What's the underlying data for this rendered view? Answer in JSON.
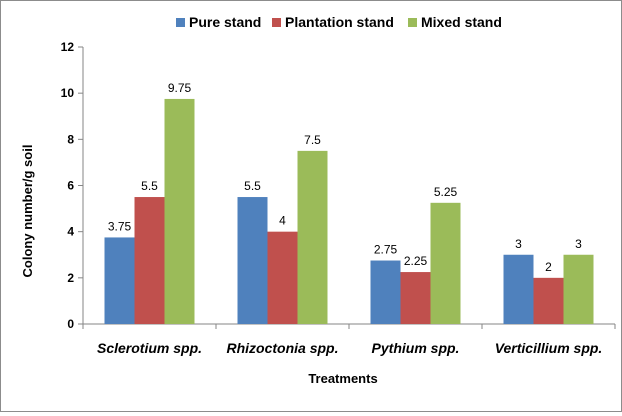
{
  "chart_data": {
    "type": "bar",
    "categories": [
      "Sclerotium spp.",
      "Rhizoctonia spp.",
      "Pythium spp.",
      "Verticillium spp."
    ],
    "series": [
      {
        "name": "Pure stand",
        "color": "#4f81bd",
        "values": [
          3.75,
          5.5,
          2.75,
          3
        ]
      },
      {
        "name": "Plantation stand",
        "color": "#c0504d",
        "values": [
          5.5,
          4,
          2.25,
          2
        ]
      },
      {
        "name": "Mixed stand",
        "color": "#9bbb59",
        "values": [
          9.75,
          7.5,
          5.25,
          3
        ]
      }
    ],
    "data_labels": [
      [
        "3.75",
        "5.5",
        "2.75",
        "3"
      ],
      [
        "5.5",
        "4",
        "2.25",
        "2"
      ],
      [
        "9.75",
        "7.5",
        "5.25",
        "3"
      ]
    ],
    "xlabel": "Treatments",
    "ylabel": "Colony number/g soil",
    "ylim": [
      0,
      12
    ],
    "yticks": [
      0,
      2,
      4,
      6,
      8,
      10,
      12
    ],
    "legend_position": "top",
    "grid": false
  }
}
